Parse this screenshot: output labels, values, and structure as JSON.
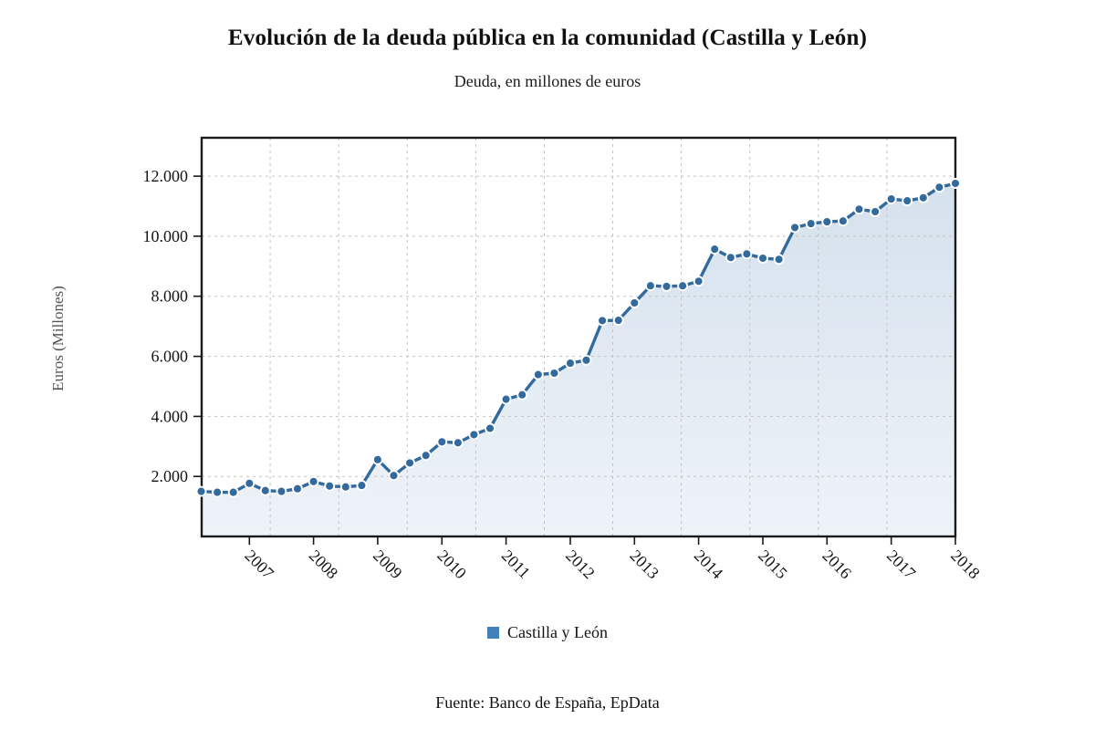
{
  "page": {
    "source": "Fuente: Banco de España, EpData"
  },
  "chart_data": {
    "type": "line",
    "title": "Evolución de la deuda pública en la comunidad (Castilla y León)",
    "subtitle": "Deuda, en millones de euros",
    "ylabel": "Euros (Millones)",
    "xlabel": "",
    "grid": true,
    "legend_position": "bottom",
    "ylim": [
      0,
      13280
    ],
    "yticks": [
      2000,
      4000,
      6000,
      8000,
      10000,
      12000
    ],
    "ytick_labels": [
      "2.000",
      "4.000",
      "6.000",
      "8.000",
      "10.000",
      "12.000"
    ],
    "xticks": [
      "2007",
      "2008",
      "2009",
      "2010",
      "2011",
      "2012",
      "2013",
      "2014",
      "2015",
      "2016",
      "2017",
      "2018"
    ],
    "x": [
      "2006 T2",
      "2006 T3",
      "2006 T4",
      "2007 T1",
      "2007 T2",
      "2007 T3",
      "2007 T4",
      "2008 T1",
      "2008 T2",
      "2008 T3",
      "2008 T4",
      "2009 T1",
      "2009 T2",
      "2009 T3",
      "2009 T4",
      "2010 T1",
      "2010 T2",
      "2010 T3",
      "2010 T4",
      "2011 T1",
      "2011 T2",
      "2011 T3",
      "2011 T4",
      "2012 T1",
      "2012 T2",
      "2012 T3",
      "2012 T4",
      "2013 T1",
      "2013 T2",
      "2013 T3",
      "2013 T4",
      "2014 T1",
      "2014 T2",
      "2014 T3",
      "2014 T4",
      "2015 T1",
      "2015 T2",
      "2015 T3",
      "2015 T4",
      "2016 T1",
      "2016 T2",
      "2016 T3",
      "2016 T4",
      "2017 T1",
      "2017 T2",
      "2017 T3",
      "2017 T4",
      "2018 T1"
    ],
    "series": [
      {
        "name": "Castilla y León",
        "values": [
          1500,
          1470,
          1470,
          1770,
          1530,
          1500,
          1590,
          1830,
          1680,
          1650,
          1700,
          2560,
          2030,
          2450,
          2700,
          3150,
          3120,
          3390,
          3600,
          4570,
          4720,
          5390,
          5440,
          5770,
          5870,
          7190,
          7200,
          7780,
          8350,
          8330,
          8350,
          8500,
          9570,
          9290,
          9410,
          9270,
          9230,
          10290,
          10420,
          10480,
          10510,
          10900,
          10820,
          11240,
          11180,
          11280,
          11630,
          11760
        ]
      }
    ]
  },
  "colors": {
    "series": "#336a9e",
    "legend_swatch": "#4180b8",
    "area_top": "#d5e1ed",
    "area_bottom": "#eef3f8",
    "grid": "#c3c3c3",
    "axis": "#1a1a1a",
    "text": "#141414",
    "ylabel_text": "#555555"
  }
}
